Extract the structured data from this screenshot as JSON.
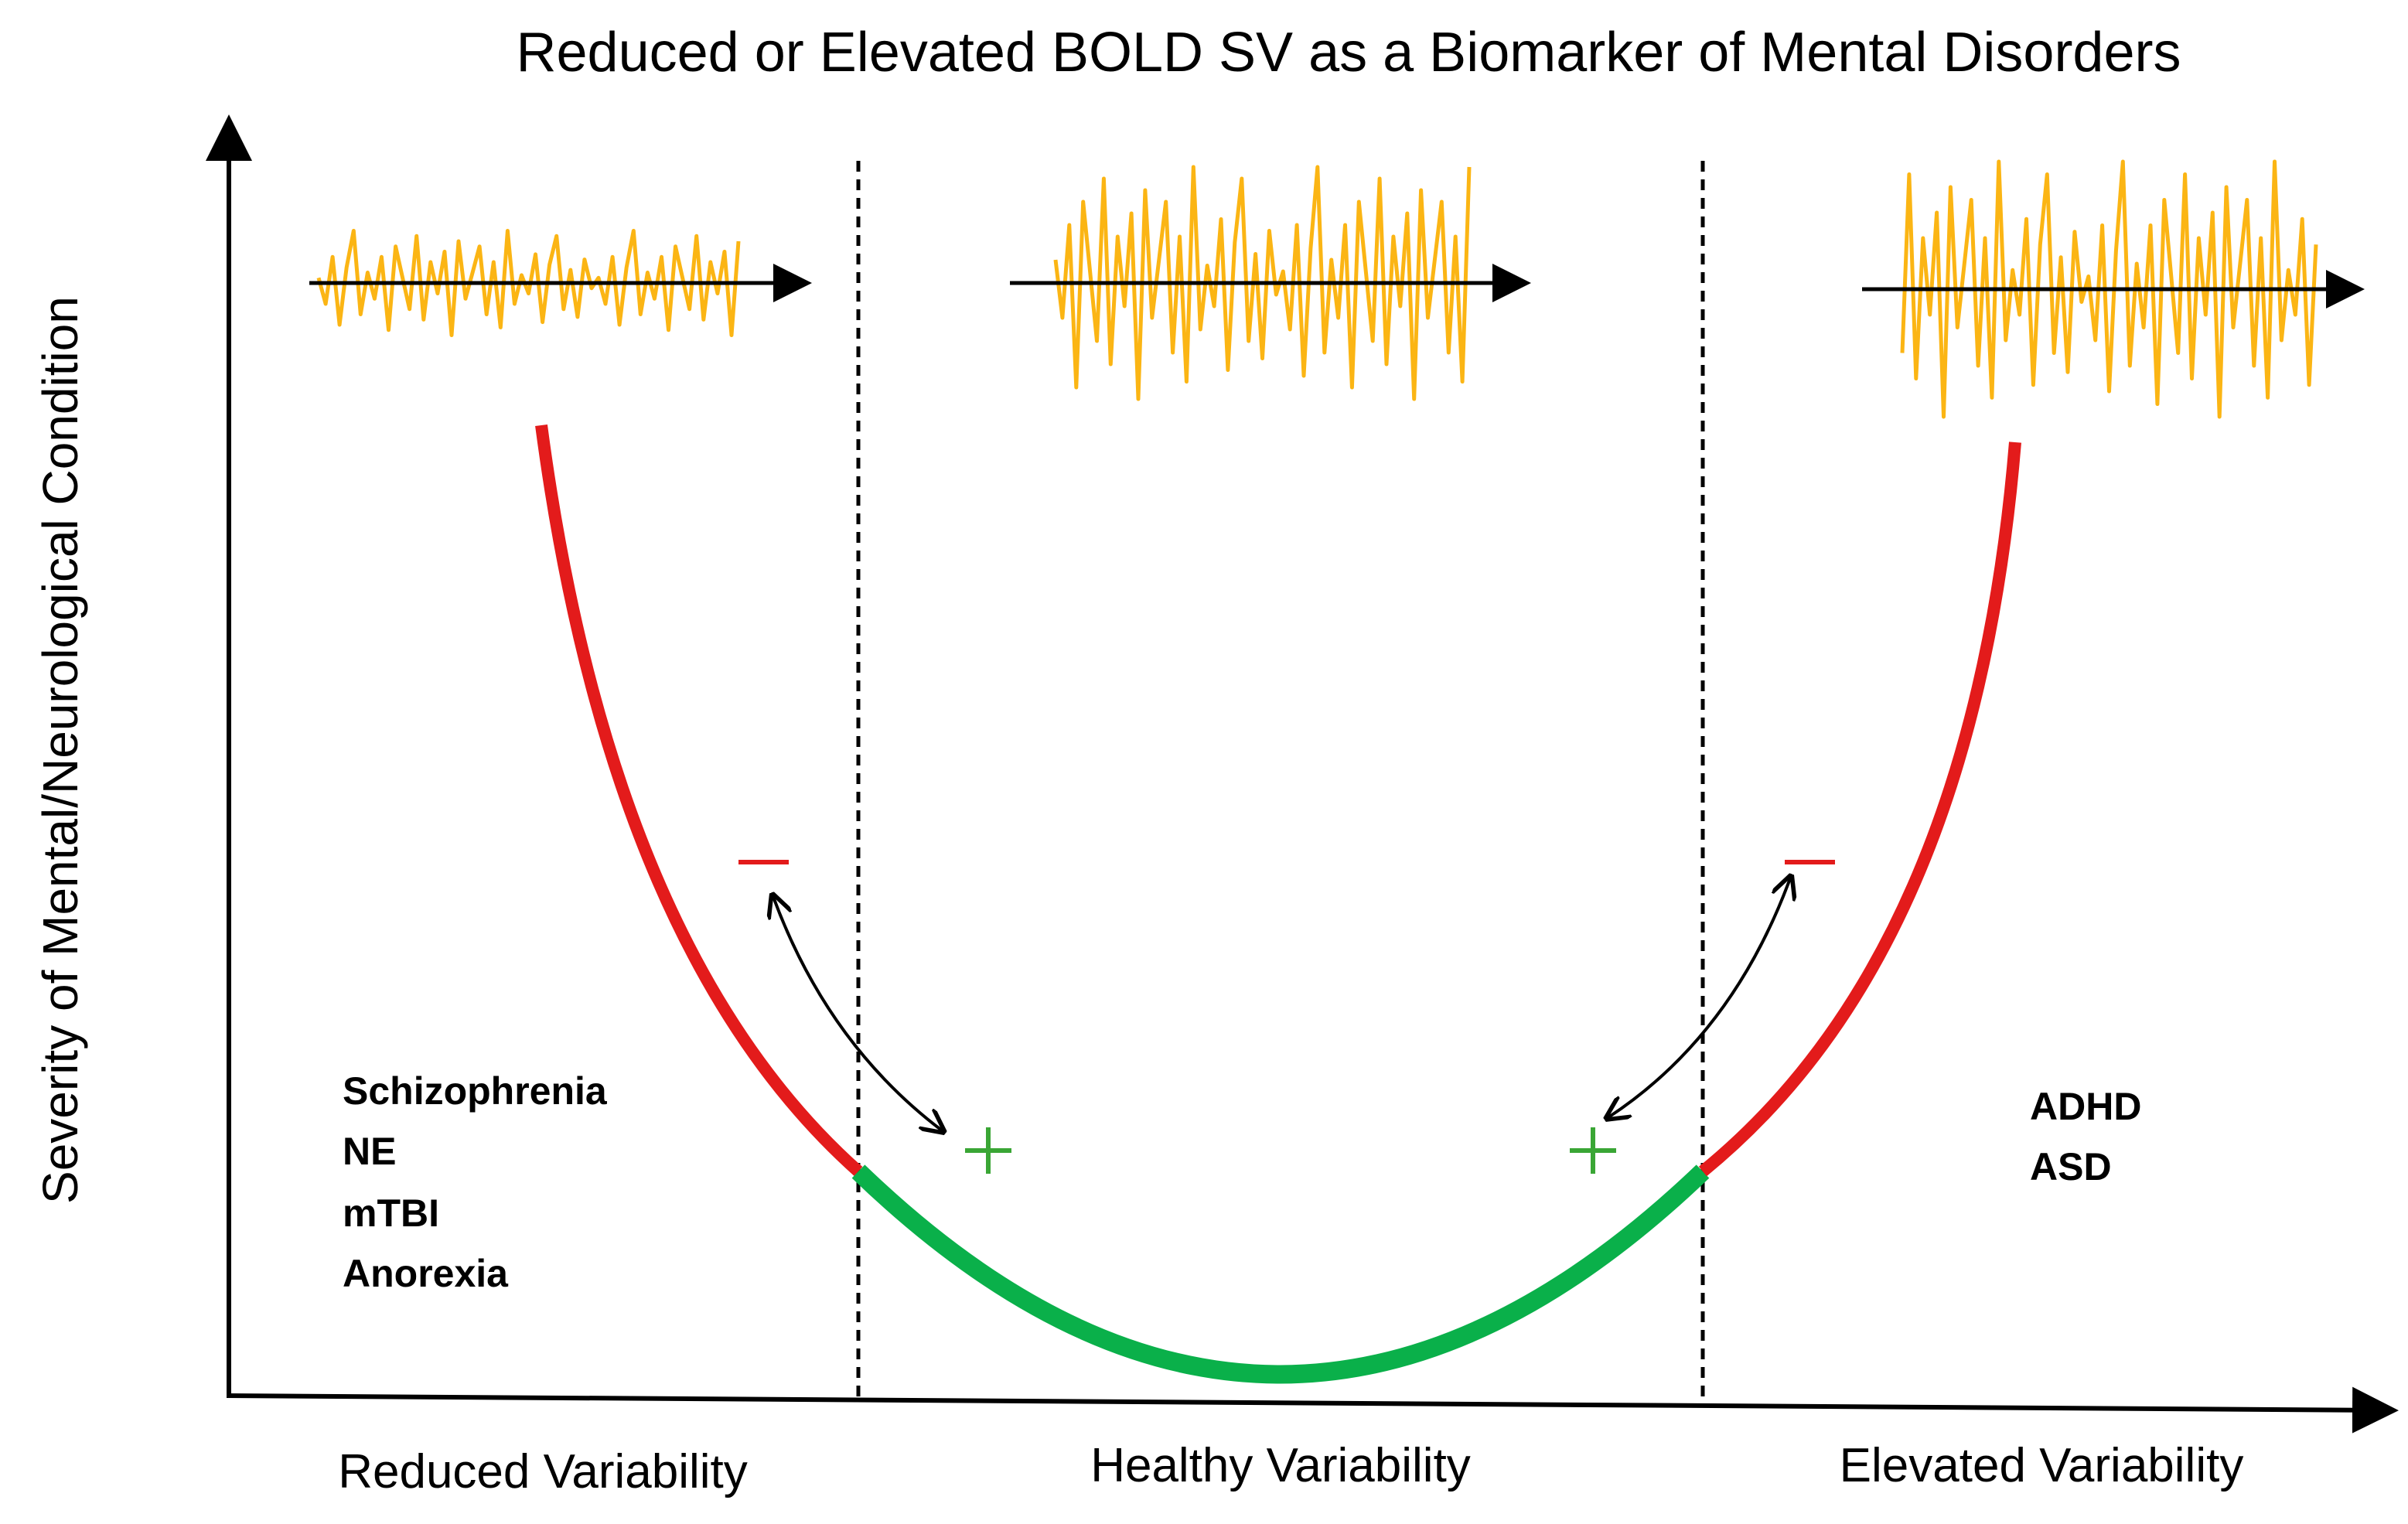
{
  "title": "Reduced or Elevated BOLD SV as a Biomarker of Mental Disorders",
  "y_axis_label": "Severity of Mental/Neurological Condition",
  "x_regions": {
    "reduced": "Reduced Variability",
    "healthy": "Healthy Variability",
    "elevated": "Elevated Variability"
  },
  "left_disorders": [
    "Schizophrenia",
    "NE",
    "mTBI",
    "Anorexia"
  ],
  "right_disorders": [
    "ADHD",
    "ASD"
  ],
  "signs": {
    "plus": "+",
    "minus": "−"
  },
  "colors": {
    "pathological": "#e31b1b",
    "healthy": "#0ab04a",
    "signal": "#fbb514",
    "plus": "#3aa635",
    "axis": "#000000"
  },
  "signal_amplitudes": {
    "reduced": 0.35,
    "healthy": 0.7,
    "elevated": 1.0
  }
}
